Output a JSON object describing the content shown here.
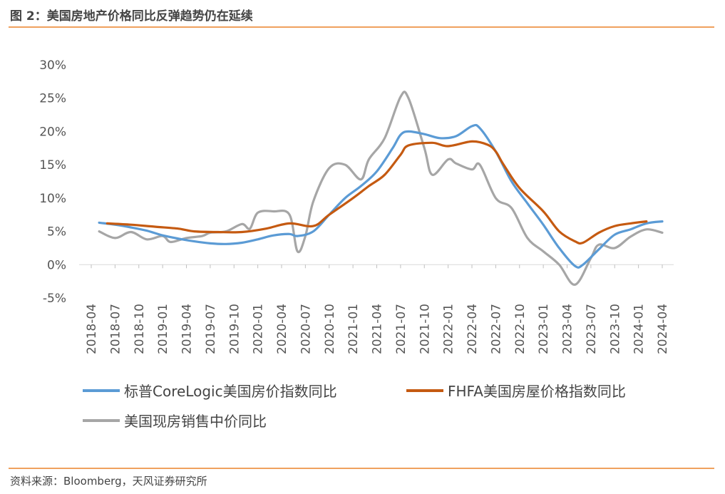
{
  "header": {
    "title": "图 2：美国房地产价格同比反弹趋势仍在延续"
  },
  "footer": {
    "source": "资料来源：Bloomberg，天风证券研究所"
  },
  "colors": {
    "rule": "#f0a15e",
    "grid": "#d9d9d9"
  },
  "chart_data": {
    "type": "line",
    "title": "",
    "xlabel": "",
    "ylabel": "",
    "ylim": [
      -5,
      30
    ],
    "yticks": [
      30,
      25,
      20,
      15,
      10,
      5,
      0,
      -5
    ],
    "ytick_labels": [
      "30%",
      "25%",
      "20%",
      "15%",
      "10%",
      "5%",
      "0%",
      "-5%"
    ],
    "x_start": "2018-04",
    "x_end": "2024-04",
    "xtick_labels": [
      "2018-04",
      "2018-07",
      "2018-10",
      "2019-01",
      "2019-04",
      "2019-07",
      "2019-10",
      "2020-01",
      "2020-04",
      "2020-07",
      "2020-10",
      "2021-01",
      "2021-04",
      "2021-07",
      "2021-10",
      "2022-01",
      "2022-04",
      "2022-07",
      "2022-10",
      "2023-01",
      "2023-04",
      "2023-07",
      "2023-10",
      "2024-01",
      "2024-04"
    ],
    "legend_position": "bottom",
    "series": [
      {
        "name": "标普CoreLogic美国房价指数同比",
        "color": "#5b9bd5",
        "points": [
          [
            "2018-05",
            6.3
          ],
          [
            "2018-07",
            6.0
          ],
          [
            "2018-09",
            5.6
          ],
          [
            "2018-11",
            5.1
          ],
          [
            "2019-01",
            4.4
          ],
          [
            "2019-03",
            3.9
          ],
          [
            "2019-05",
            3.5
          ],
          [
            "2019-07",
            3.2
          ],
          [
            "2019-09",
            3.1
          ],
          [
            "2019-11",
            3.3
          ],
          [
            "2020-01",
            3.8
          ],
          [
            "2020-03",
            4.4
          ],
          [
            "2020-05",
            4.6
          ],
          [
            "2020-06",
            4.3
          ],
          [
            "2020-08",
            5.0
          ],
          [
            "2020-10",
            7.5
          ],
          [
            "2020-12",
            10.0
          ],
          [
            "2021-02",
            11.8
          ],
          [
            "2021-04",
            14.0
          ],
          [
            "2021-06",
            17.5
          ],
          [
            "2021-07",
            19.5
          ],
          [
            "2021-08",
            20.0
          ],
          [
            "2021-10",
            19.6
          ],
          [
            "2021-12",
            19.0
          ],
          [
            "2022-02",
            19.3
          ],
          [
            "2022-04",
            20.8
          ],
          [
            "2022-05",
            20.5
          ],
          [
            "2022-07",
            17.0
          ],
          [
            "2022-09",
            12.5
          ],
          [
            "2022-11",
            9.2
          ],
          [
            "2023-01",
            6.0
          ],
          [
            "2023-03",
            2.5
          ],
          [
            "2023-05",
            -0.2
          ],
          [
            "2023-06",
            0.0
          ],
          [
            "2023-08",
            2.3
          ],
          [
            "2023-10",
            4.5
          ],
          [
            "2023-12",
            5.3
          ],
          [
            "2024-02",
            6.2
          ],
          [
            "2024-04",
            6.5
          ]
        ]
      },
      {
        "name": "FHFA美国房屋价格指数同比",
        "color": "#c55a11",
        "points": [
          [
            "2018-06",
            6.2
          ],
          [
            "2018-09",
            6.0
          ],
          [
            "2018-12",
            5.7
          ],
          [
            "2019-03",
            5.4
          ],
          [
            "2019-05",
            5.0
          ],
          [
            "2019-08",
            4.9
          ],
          [
            "2019-11",
            4.9
          ],
          [
            "2020-02",
            5.4
          ],
          [
            "2020-05",
            6.2
          ],
          [
            "2020-08",
            5.8
          ],
          [
            "2020-10",
            7.5
          ],
          [
            "2021-01",
            10.0
          ],
          [
            "2021-03",
            11.8
          ],
          [
            "2021-05",
            13.5
          ],
          [
            "2021-07",
            16.5
          ],
          [
            "2021-08",
            17.9
          ],
          [
            "2021-11",
            18.3
          ],
          [
            "2022-01",
            17.8
          ],
          [
            "2022-04",
            18.5
          ],
          [
            "2022-06",
            18.0
          ],
          [
            "2022-07",
            17.0
          ],
          [
            "2022-08",
            15.0
          ],
          [
            "2022-10",
            11.5
          ],
          [
            "2023-01",
            8.0
          ],
          [
            "2023-03",
            5.0
          ],
          [
            "2023-05",
            3.5
          ],
          [
            "2023-06",
            3.3
          ],
          [
            "2023-08",
            4.8
          ],
          [
            "2023-10",
            5.8
          ],
          [
            "2023-12",
            6.2
          ],
          [
            "2024-02",
            6.5
          ]
        ]
      },
      {
        "name": "美国现房销售中价同比",
        "color": "#a6a6a6",
        "points": [
          [
            "2018-05",
            5.0
          ],
          [
            "2018-07",
            4.0
          ],
          [
            "2018-09",
            4.9
          ],
          [
            "2018-11",
            3.8
          ],
          [
            "2019-01",
            4.3
          ],
          [
            "2019-02",
            3.4
          ],
          [
            "2019-04",
            4.0
          ],
          [
            "2019-06",
            4.3
          ],
          [
            "2019-07",
            4.8
          ],
          [
            "2019-09",
            5.0
          ],
          [
            "2019-11",
            6.1
          ],
          [
            "2019-12",
            5.4
          ],
          [
            "2020-01",
            7.8
          ],
          [
            "2020-03",
            8.0
          ],
          [
            "2020-05",
            7.5
          ],
          [
            "2020-06",
            2.0
          ],
          [
            "2020-07",
            4.3
          ],
          [
            "2020-08",
            9.5
          ],
          [
            "2020-10",
            14.5
          ],
          [
            "2020-12",
            15.0
          ],
          [
            "2021-02",
            12.8
          ],
          [
            "2021-03",
            15.8
          ],
          [
            "2021-05",
            19.0
          ],
          [
            "2021-07",
            25.2
          ],
          [
            "2021-08",
            25.0
          ],
          [
            "2021-10",
            17.5
          ],
          [
            "2021-11",
            13.5
          ],
          [
            "2022-01",
            15.8
          ],
          [
            "2022-02",
            15.2
          ],
          [
            "2022-04",
            14.3
          ],
          [
            "2022-05",
            15.0
          ],
          [
            "2022-07",
            10.0
          ],
          [
            "2022-09",
            8.5
          ],
          [
            "2022-11",
            4.0
          ],
          [
            "2023-01",
            2.0
          ],
          [
            "2023-03",
            0.0
          ],
          [
            "2023-05",
            -3.0
          ],
          [
            "2023-07",
            1.0
          ],
          [
            "2023-08",
            3.0
          ],
          [
            "2023-10",
            2.5
          ],
          [
            "2023-12",
            4.2
          ],
          [
            "2024-02",
            5.3
          ],
          [
            "2024-04",
            4.8
          ]
        ]
      }
    ]
  }
}
